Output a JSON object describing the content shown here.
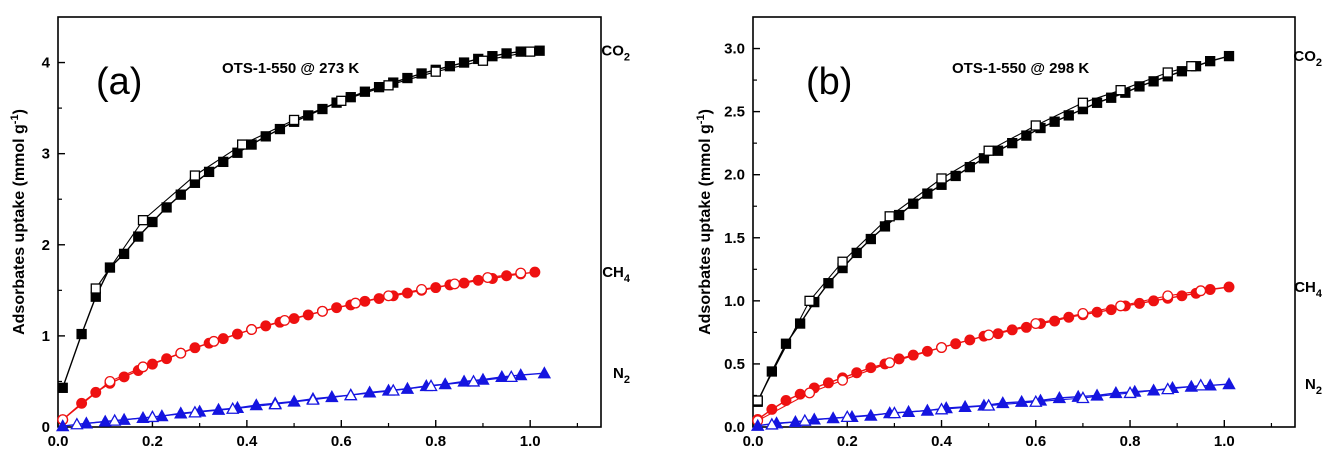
{
  "chart_data": [
    {
      "type": "scatter",
      "panel_label": "(a)",
      "title": "OTS-1-550 @ 273 K",
      "ylabel": "Adsorbates uptake (mmol g",
      "ylabel_sup": "-1",
      "ylabel_end": ")",
      "xlabel": "",
      "xlim": [
        0,
        1.15
      ],
      "ylim": [
        0,
        4.5
      ],
      "xticks": [
        "0.0",
        "0.2",
        "0.4",
        "0.6",
        "0.8",
        "1.0"
      ],
      "yticks": [
        "0",
        "1",
        "2",
        "3",
        "4"
      ],
      "series": [
        {
          "name": "CO",
          "sub": "2",
          "color": "#000000",
          "marker": "square",
          "adsorption": {
            "x": [
              0.01,
              0.05,
              0.08,
              0.11,
              0.14,
              0.17,
              0.2,
              0.23,
              0.26,
              0.29,
              0.32,
              0.35,
              0.38,
              0.41,
              0.44,
              0.47,
              0.5,
              0.53,
              0.56,
              0.59,
              0.62,
              0.65,
              0.68,
              0.71,
              0.74,
              0.77,
              0.8,
              0.83,
              0.86,
              0.89,
              0.92,
              0.95,
              0.98,
              1.02
            ],
            "y": [
              0.43,
              1.02,
              1.43,
              1.75,
              1.9,
              2.09,
              2.25,
              2.41,
              2.55,
              2.68,
              2.8,
              2.91,
              3.01,
              3.1,
              3.19,
              3.27,
              3.35,
              3.42,
              3.49,
              3.56,
              3.62,
              3.68,
              3.73,
              3.78,
              3.83,
              3.88,
              3.92,
              3.96,
              4.0,
              4.04,
              4.07,
              4.1,
              4.12,
              4.13
            ]
          },
          "desorption": {
            "x": [
              0.08,
              0.18,
              0.29,
              0.39,
              0.5,
              0.6,
              0.7,
              0.8,
              0.9,
              1.0
            ],
            "y": [
              1.52,
              2.27,
              2.76,
              3.1,
              3.37,
              3.58,
              3.75,
              3.9,
              4.02,
              4.12
            ]
          }
        },
        {
          "name": "CH",
          "sub": "4",
          "color": "#ee1111",
          "marker": "circle",
          "adsorption": {
            "x": [
              0.01,
              0.05,
              0.08,
              0.11,
              0.14,
              0.17,
              0.2,
              0.23,
              0.26,
              0.29,
              0.32,
              0.35,
              0.38,
              0.41,
              0.44,
              0.47,
              0.5,
              0.53,
              0.56,
              0.59,
              0.62,
              0.65,
              0.68,
              0.71,
              0.74,
              0.77,
              0.8,
              0.83,
              0.86,
              0.89,
              0.92,
              0.95,
              0.98,
              1.01
            ],
            "y": [
              0.08,
              0.26,
              0.38,
              0.48,
              0.55,
              0.62,
              0.69,
              0.75,
              0.81,
              0.87,
              0.92,
              0.97,
              1.02,
              1.07,
              1.11,
              1.15,
              1.19,
              1.23,
              1.27,
              1.31,
              1.34,
              1.38,
              1.41,
              1.44,
              1.47,
              1.5,
              1.53,
              1.56,
              1.58,
              1.61,
              1.63,
              1.66,
              1.68,
              1.7
            ]
          },
          "desorption": {
            "x": [
              0.01,
              0.11,
              0.18,
              0.26,
              0.33,
              0.41,
              0.48,
              0.56,
              0.63,
              0.7,
              0.77,
              0.84,
              0.91,
              0.98
            ],
            "y": [
              0.08,
              0.5,
              0.66,
              0.81,
              0.94,
              1.07,
              1.17,
              1.27,
              1.36,
              1.44,
              1.51,
              1.57,
              1.64,
              1.69
            ]
          }
        },
        {
          "name": "N",
          "sub": "2",
          "color": "#1515e0",
          "marker": "triangle",
          "adsorption": {
            "x": [
              0.01,
              0.06,
              0.1,
              0.14,
              0.18,
              0.22,
              0.26,
              0.3,
              0.34,
              0.38,
              0.42,
              0.46,
              0.5,
              0.54,
              0.58,
              0.62,
              0.66,
              0.7,
              0.74,
              0.78,
              0.82,
              0.86,
              0.9,
              0.94,
              0.98,
              1.03
            ],
            "y": [
              0.01,
              0.04,
              0.06,
              0.08,
              0.1,
              0.12,
              0.15,
              0.17,
              0.19,
              0.21,
              0.24,
              0.26,
              0.28,
              0.31,
              0.33,
              0.35,
              0.38,
              0.4,
              0.42,
              0.45,
              0.47,
              0.5,
              0.52,
              0.55,
              0.57,
              0.59
            ]
          },
          "desorption": {
            "x": [
              0.04,
              0.12,
              0.2,
              0.29,
              0.37,
              0.46,
              0.54,
              0.62,
              0.71,
              0.79,
              0.88,
              0.96
            ],
            "y": [
              0.03,
              0.07,
              0.11,
              0.16,
              0.2,
              0.25,
              0.3,
              0.35,
              0.4,
              0.45,
              0.5,
              0.55
            ]
          }
        }
      ]
    },
    {
      "type": "scatter",
      "panel_label": "(b)",
      "title": "OTS-1-550 @ 298 K",
      "ylabel": "Adsorbates uptake (mmol g",
      "ylabel_sup": "-1",
      "ylabel_end": ")",
      "xlabel": "",
      "xlim": [
        0,
        1.15
      ],
      "ylim": [
        0,
        3.25
      ],
      "xticks": [
        "0.0",
        "0.2",
        "0.4",
        "0.6",
        "0.8",
        "1.0"
      ],
      "yticks": [
        "0.0",
        "0.5",
        "1.0",
        "1.5",
        "2.0",
        "2.5",
        "3.0"
      ],
      "series": [
        {
          "name": "CO",
          "sub": "2",
          "color": "#000000",
          "marker": "square",
          "adsorption": {
            "x": [
              0.01,
              0.04,
              0.07,
              0.1,
              0.13,
              0.16,
              0.19,
              0.22,
              0.25,
              0.28,
              0.31,
              0.34,
              0.37,
              0.4,
              0.43,
              0.46,
              0.49,
              0.52,
              0.55,
              0.58,
              0.61,
              0.64,
              0.67,
              0.7,
              0.73,
              0.76,
              0.79,
              0.82,
              0.85,
              0.88,
              0.91,
              0.94,
              0.97,
              1.01
            ],
            "y": [
              0.2,
              0.44,
              0.66,
              0.82,
              0.99,
              1.14,
              1.26,
              1.38,
              1.49,
              1.59,
              1.68,
              1.77,
              1.85,
              1.92,
              1.99,
              2.06,
              2.13,
              2.19,
              2.25,
              2.31,
              2.37,
              2.42,
              2.47,
              2.52,
              2.57,
              2.61,
              2.65,
              2.7,
              2.74,
              2.78,
              2.82,
              2.86,
              2.9,
              2.94
            ]
          },
          "desorption": {
            "x": [
              0.01,
              0.12,
              0.19,
              0.29,
              0.4,
              0.5,
              0.6,
              0.7,
              0.78,
              0.88,
              0.93
            ],
            "y": [
              0.21,
              1.0,
              1.31,
              1.67,
              1.97,
              2.19,
              2.39,
              2.57,
              2.67,
              2.81,
              2.86
            ]
          }
        },
        {
          "name": "CH",
          "sub": "4",
          "color": "#ee1111",
          "marker": "circle",
          "adsorption": {
            "x": [
              0.01,
              0.04,
              0.07,
              0.1,
              0.13,
              0.16,
              0.19,
              0.22,
              0.25,
              0.28,
              0.31,
              0.34,
              0.37,
              0.4,
              0.43,
              0.46,
              0.49,
              0.52,
              0.55,
              0.58,
              0.61,
              0.64,
              0.67,
              0.7,
              0.73,
              0.76,
              0.79,
              0.82,
              0.85,
              0.88,
              0.91,
              0.94,
              0.97,
              1.01
            ],
            "y": [
              0.06,
              0.14,
              0.21,
              0.26,
              0.31,
              0.35,
              0.39,
              0.43,
              0.47,
              0.5,
              0.54,
              0.57,
              0.6,
              0.63,
              0.66,
              0.69,
              0.72,
              0.74,
              0.77,
              0.79,
              0.82,
              0.84,
              0.87,
              0.89,
              0.91,
              0.93,
              0.96,
              0.98,
              1.0,
              1.02,
              1.04,
              1.06,
              1.09,
              1.11
            ]
          },
          "desorption": {
            "x": [
              0.01,
              0.12,
              0.19,
              0.29,
              0.4,
              0.5,
              0.6,
              0.7,
              0.78,
              0.88,
              0.95
            ],
            "y": [
              0.05,
              0.27,
              0.37,
              0.51,
              0.63,
              0.73,
              0.82,
              0.9,
              0.96,
              1.04,
              1.08
            ]
          }
        },
        {
          "name": "N",
          "sub": "2",
          "color": "#1515e0",
          "marker": "triangle",
          "adsorption": {
            "x": [
              0.01,
              0.05,
              0.09,
              0.13,
              0.17,
              0.21,
              0.25,
              0.29,
              0.33,
              0.37,
              0.41,
              0.45,
              0.49,
              0.53,
              0.57,
              0.61,
              0.65,
              0.69,
              0.73,
              0.77,
              0.81,
              0.85,
              0.89,
              0.93,
              0.97,
              1.01
            ],
            "y": [
              0.01,
              0.03,
              0.04,
              0.06,
              0.07,
              0.08,
              0.09,
              0.11,
              0.12,
              0.13,
              0.15,
              0.16,
              0.17,
              0.19,
              0.2,
              0.21,
              0.23,
              0.24,
              0.25,
              0.27,
              0.28,
              0.29,
              0.31,
              0.32,
              0.33,
              0.34
            ]
          },
          "desorption": {
            "x": [
              0.04,
              0.11,
              0.2,
              0.3,
              0.4,
              0.5,
              0.6,
              0.7,
              0.8,
              0.88,
              0.95
            ],
            "y": [
              0.02,
              0.05,
              0.08,
              0.11,
              0.14,
              0.17,
              0.2,
              0.23,
              0.27,
              0.3,
              0.33
            ]
          }
        }
      ]
    }
  ]
}
